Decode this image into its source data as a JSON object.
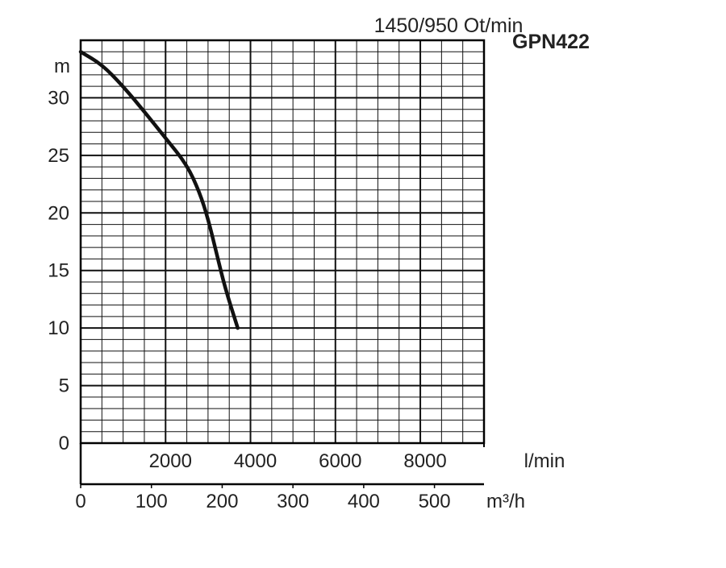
{
  "chart_data": {
    "type": "line",
    "title": "1450/950 Ot/min",
    "subtitle": "GPN422",
    "ylabel": "m",
    "xlabel": "l/min",
    "x2label": "m³/h",
    "ylim": [
      0,
      35
    ],
    "xlim_lmin": [
      0,
      9500
    ],
    "xlim_m3h": [
      0,
      570
    ],
    "grid": true,
    "y_ticks": [
      "0",
      "5",
      "10",
      "15",
      "20",
      "25",
      "30"
    ],
    "x_ticks_lmin": [
      "2000",
      "4000",
      "6000",
      "8000"
    ],
    "x_ticks_m3h": [
      "0",
      "100",
      "200",
      "300",
      "400",
      "500"
    ],
    "series": [
      {
        "x": [
          0,
          500,
          1000,
          1500,
          2000,
          2500,
          2800,
          3000,
          3200,
          3400,
          3700
        ],
        "y": [
          34.0,
          32.9,
          31.0,
          28.8,
          26.5,
          24.2,
          21.8,
          19.5,
          16.5,
          13.5,
          10.0
        ]
      }
    ]
  }
}
